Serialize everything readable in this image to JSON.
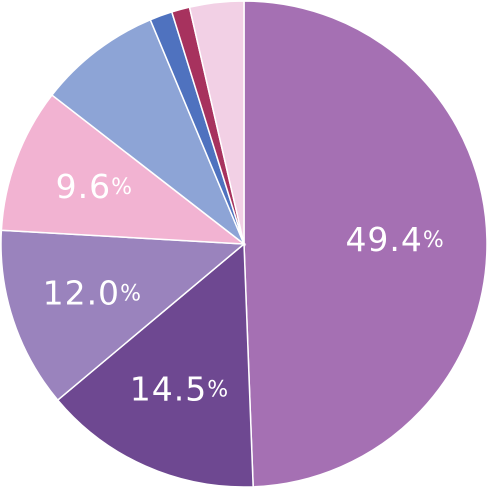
{
  "chart_data": {
    "type": "pie",
    "start": "top, clockwise",
    "slices": [
      {
        "value": 49.4,
        "label": "49.4",
        "color": "#a570b3"
      },
      {
        "value": 14.5,
        "label": "14.5",
        "color": "#6e4891"
      },
      {
        "value": 12.0,
        "label": "12.0",
        "color": "#9a83bd"
      },
      {
        "value": 9.6,
        "label": "9.6",
        "color": "#f2b3d2"
      },
      {
        "value": 8.2,
        "label": "",
        "color": "#8da4d6"
      },
      {
        "value": 1.5,
        "label": "",
        "color": "#4f72bf"
      },
      {
        "value": 1.2,
        "label": "",
        "color": "#a7325e"
      },
      {
        "value": 3.6,
        "label": "",
        "color": "#f2d0e5"
      }
    ],
    "unit_symbol": "%"
  }
}
